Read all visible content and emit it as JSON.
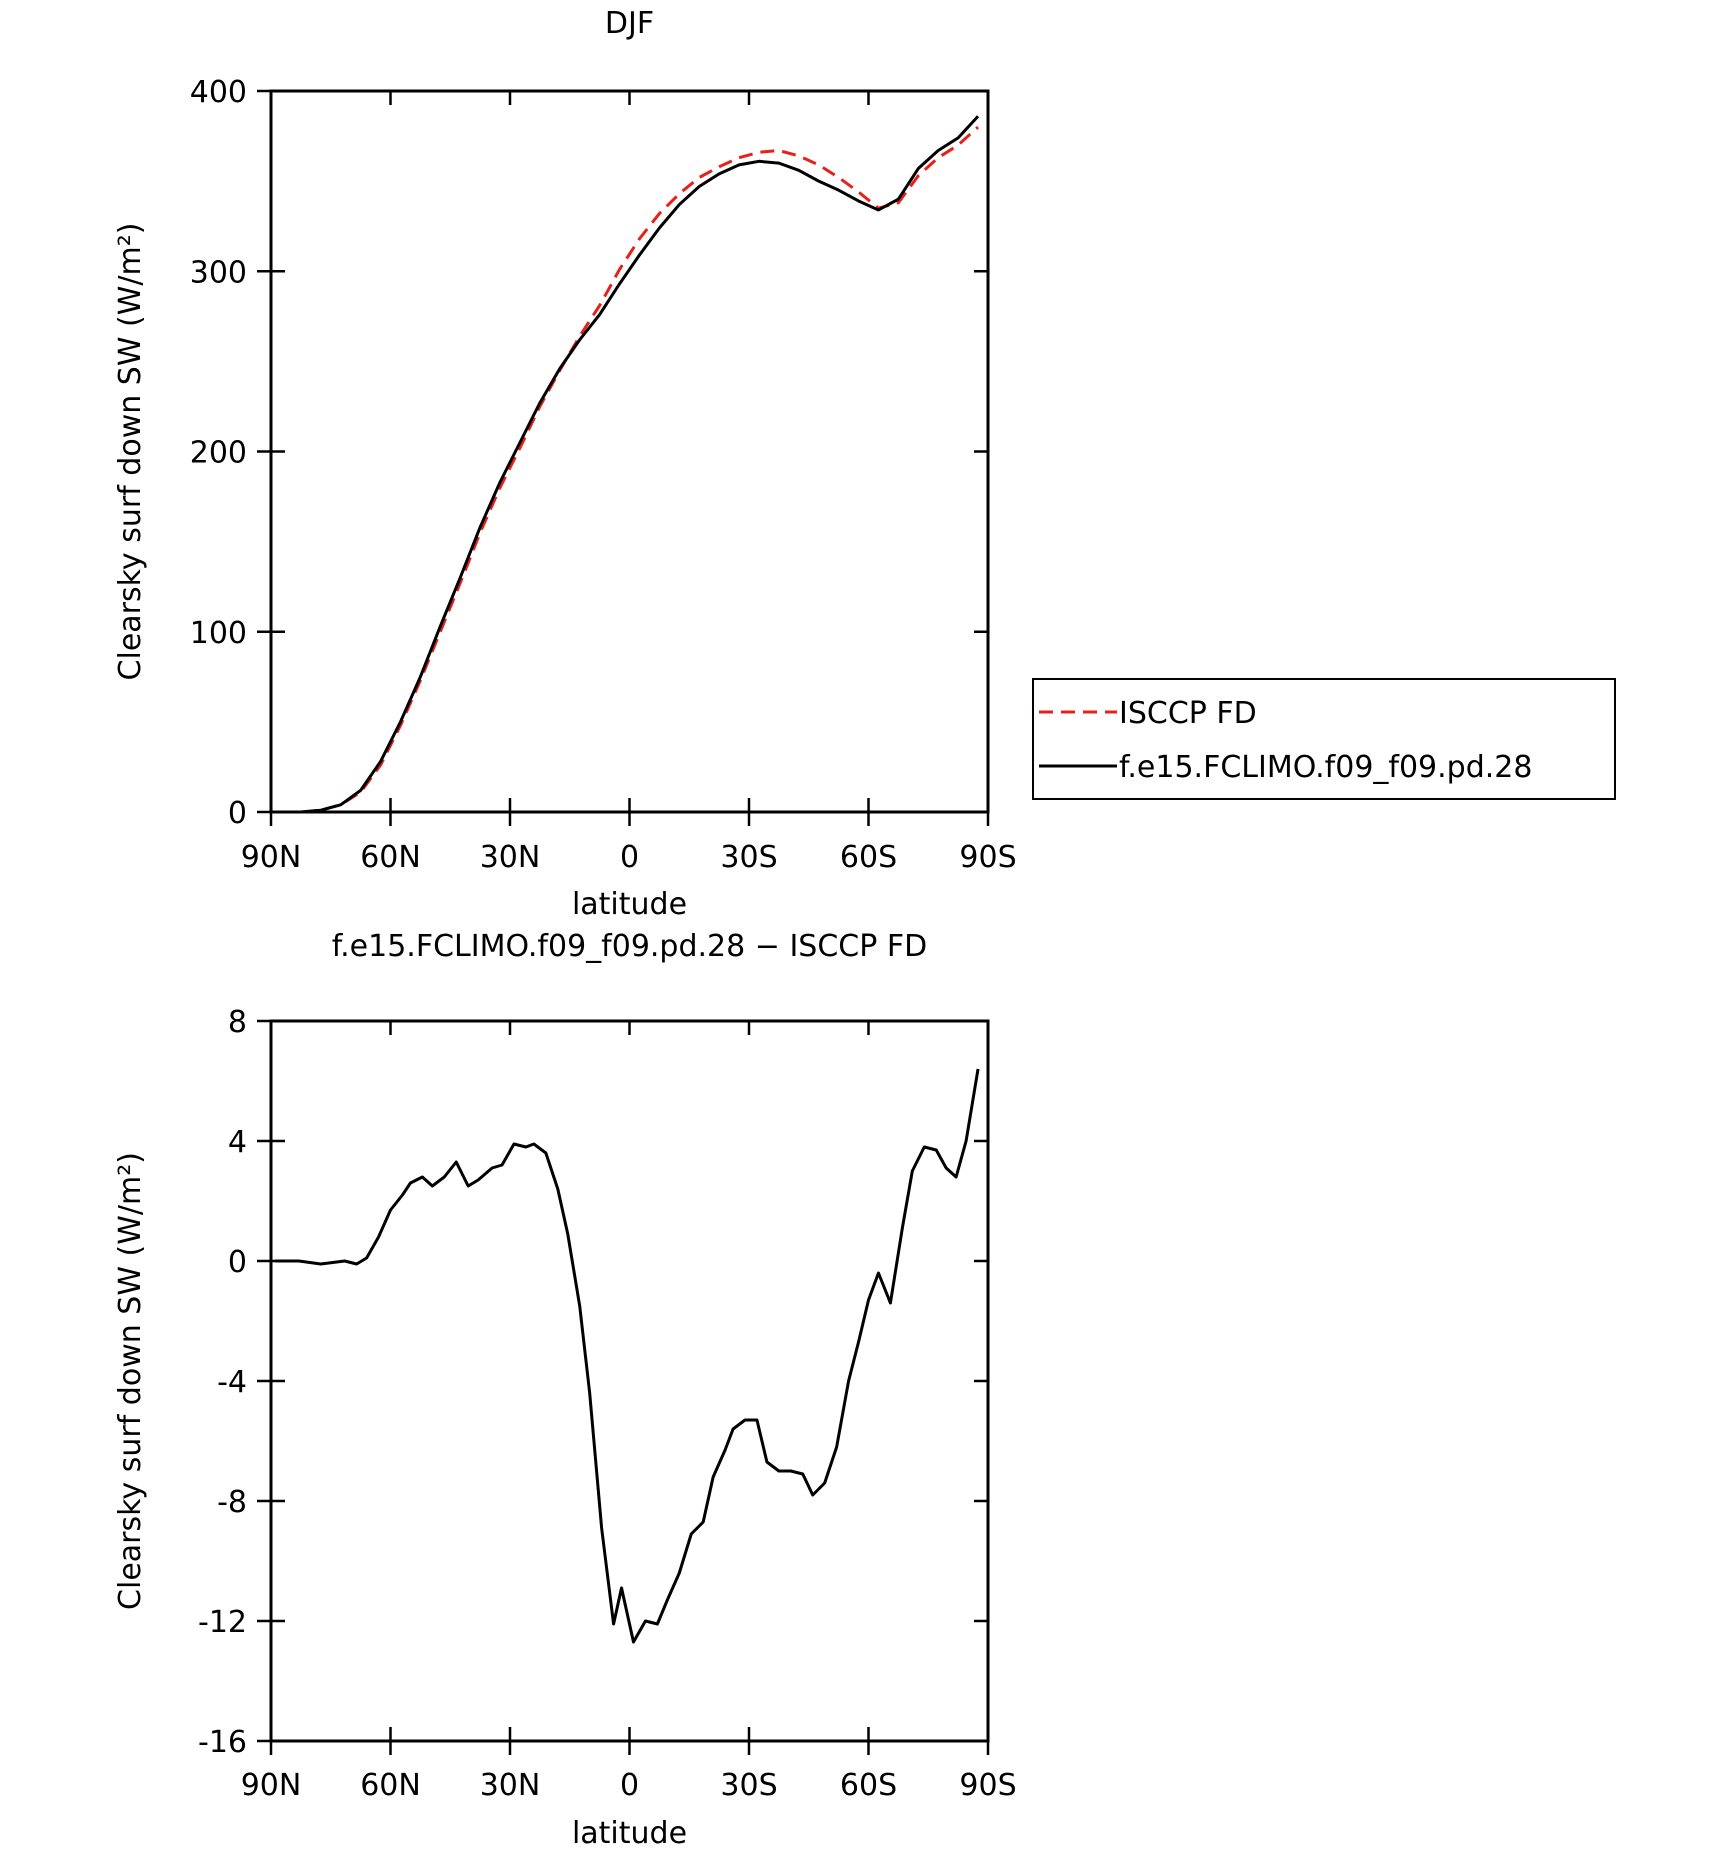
{
  "chart_data": [
    {
      "type": "line",
      "title": "DJF",
      "xlabel": "latitude",
      "ylabel": "Clearsky surf down SW (W/m²)",
      "x": [
        87.5,
        82.5,
        77.5,
        72.5,
        67.5,
        62.5,
        57.5,
        52.5,
        47.5,
        42.5,
        37.5,
        32.5,
        27.5,
        22.5,
        17.5,
        12.5,
        7.5,
        2.5,
        -2.5,
        -7.5,
        -12.5,
        -17.5,
        -22.5,
        -27.5,
        -32.5,
        -37.5,
        -42.5,
        -47.5,
        -52.5,
        -57.5,
        -62.5,
        -67.5,
        -72.5,
        -77.5,
        -82.5,
        -87.5
      ],
      "series": [
        {
          "name": "ISCCP FD",
          "color": "#e8201a",
          "dash": true,
          "values": [
            0,
            0,
            1,
            4,
            11,
            26,
            48,
            73,
            100,
            127,
            155,
            180,
            202,
            225,
            245,
            264,
            281,
            301,
            318,
            332,
            343,
            352,
            358,
            363,
            366,
            367,
            364,
            359,
            352,
            344,
            335,
            338,
            353,
            363,
            370,
            380
          ]
        },
        {
          "name": "f.e15.FCLIMO.f09_f09.pd.28",
          "color": "#000000",
          "dash": false,
          "values": [
            0,
            0,
            1,
            4,
            12,
            28,
            50,
            75,
            103,
            130,
            158,
            183,
            205,
            227,
            246,
            262,
            276,
            293,
            309,
            324,
            337,
            347,
            354,
            359,
            361,
            360,
            356,
            350,
            345,
            339,
            334,
            340,
            357,
            367,
            374,
            386
          ]
        }
      ],
      "xlim": [
        90,
        -90
      ],
      "xticks": [
        {
          "value": 90,
          "label": "90N"
        },
        {
          "value": 60,
          "label": "60N"
        },
        {
          "value": 30,
          "label": "30N"
        },
        0,
        {
          "value": -30,
          "label": "30S"
        },
        {
          "value": -60,
          "label": "60S"
        },
        {
          "value": -90,
          "label": "90S"
        }
      ],
      "ylim": [
        0,
        400
      ],
      "yticks": [
        0,
        100,
        200,
        300,
        400
      ],
      "legend": "right"
    },
    {
      "type": "line",
      "title": "f.e15.FCLIMO.f09_f09.pd.28 − ISCCP FD",
      "xlabel": "latitude",
      "ylabel": "Clearsky surf down SW (W/m²)",
      "x": [
        89,
        83,
        77.5,
        71.5,
        68.5,
        66,
        63,
        60,
        57,
        55,
        52,
        49.5,
        46.5,
        43.5,
        40.5,
        38,
        34.5,
        32,
        29,
        26,
        24,
        21,
        18,
        15.5,
        12.5,
        10,
        7,
        4,
        2,
        -1,
        -4,
        -7,
        -9.5,
        -12.5,
        -15.5,
        -18.5,
        -21,
        -24,
        -26,
        -29,
        -32,
        -34.5,
        -37.5,
        -40.5,
        -43.5,
        -46,
        -49,
        -52,
        -55,
        -57.5,
        -60,
        -62.5,
        -65.5,
        -68.5,
        -71,
        -74,
        -77,
        -79.5,
        -82,
        -84.5,
        -87.5
      ],
      "series": [
        {
          "name": "f.e15.FCLIMO.f09_f09.pd.28 − ISCCP FD",
          "color": "#000000",
          "dash": false,
          "values": [
            0,
            0,
            -0.1,
            0,
            -0.1,
            0.1,
            0.8,
            1.7,
            2.2,
            2.6,
            2.8,
            2.5,
            2.8,
            3.3,
            2.5,
            2.7,
            3.1,
            3.2,
            3.9,
            3.8,
            3.9,
            3.6,
            2.4,
            0.9,
            -1.5,
            -4.4,
            -8.9,
            -12.1,
            -10.9,
            -12.7,
            -12.0,
            -12.1,
            -11.3,
            -10.4,
            -9.1,
            -8.7,
            -7.2,
            -6.3,
            -5.6,
            -5.3,
            -5.3,
            -6.7,
            -7.0,
            -7.0,
            -7.1,
            -7.8,
            -7.4,
            -6.2,
            -4.0,
            -2.7,
            -1.3,
            -0.4,
            -1.4,
            1.1,
            3.0,
            3.8,
            3.7,
            3.1,
            2.8,
            4.0,
            6.4
          ]
        }
      ],
      "xlim": [
        90,
        -90
      ],
      "xticks": [
        {
          "value": 90,
          "label": "90N"
        },
        {
          "value": 60,
          "label": "60N"
        },
        {
          "value": 30,
          "label": "30N"
        },
        0,
        {
          "value": -30,
          "label": "30S"
        },
        {
          "value": -60,
          "label": "60S"
        },
        {
          "value": -90,
          "label": "90S"
        }
      ],
      "ylim": [
        -16,
        8
      ],
      "yticks": [
        -16,
        -12,
        -8,
        -4,
        0,
        4,
        8
      ]
    }
  ]
}
